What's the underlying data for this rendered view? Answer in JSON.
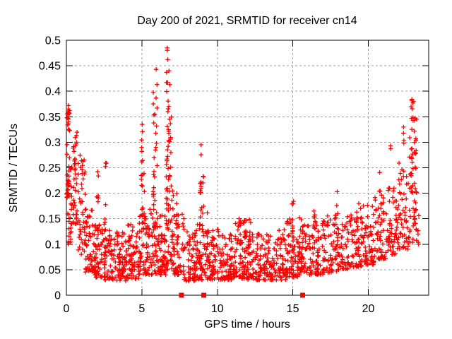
{
  "chart_data": {
    "type": "scatter",
    "title": "Day 200 of 2021, SRMTID for receiver cn14",
    "xlabel": "GPS time / hours",
    "ylabel": "SRMTID / TECUs",
    "xlim": [
      0,
      24
    ],
    "ylim": [
      0,
      0.5
    ],
    "xticks": [
      0,
      5,
      10,
      15,
      20
    ],
    "xtick_labels": [
      "0",
      "5",
      "10",
      "15",
      "20"
    ],
    "yticks": [
      0,
      0.05,
      0.1,
      0.15,
      0.2,
      0.25,
      0.3,
      0.35,
      0.4,
      0.45,
      0.5
    ],
    "ytick_labels": [
      "0",
      "0.05",
      "0.1",
      "0.15",
      "0.2",
      "0.25",
      "0.3",
      "0.35",
      "0.4",
      "0.45",
      "0.5"
    ],
    "grid": true,
    "legend": "none",
    "marker": "plus",
    "marker_color": "#ff0000",
    "grid_color": "#9e9e9e",
    "axis_color": "#000000",
    "background": "#ffffff",
    "seed": 20210200,
    "density_bands": [
      [
        0.02,
        0.18,
        0.19,
        0.375,
        30
      ],
      [
        0.05,
        0.35,
        0.1,
        0.3,
        25
      ],
      [
        0.35,
        0.75,
        0.14,
        0.335,
        34
      ],
      [
        0.75,
        1.25,
        0.08,
        0.28,
        36
      ],
      [
        1.25,
        1.85,
        0.045,
        0.17,
        52
      ],
      [
        1.85,
        2.5,
        0.035,
        0.145,
        58
      ],
      [
        2.5,
        3.2,
        0.03,
        0.13,
        62
      ],
      [
        3.2,
        4.0,
        0.028,
        0.125,
        68
      ],
      [
        4.0,
        4.8,
        0.032,
        0.14,
        68
      ],
      [
        4.8,
        5.5,
        0.04,
        0.17,
        62
      ],
      [
        5.5,
        6.2,
        0.04,
        0.18,
        58
      ],
      [
        6.2,
        6.6,
        0.04,
        0.16,
        44
      ],
      [
        6.6,
        7.1,
        0.05,
        0.22,
        52
      ],
      [
        7.1,
        7.8,
        0.04,
        0.16,
        54
      ],
      [
        7.8,
        8.6,
        0.028,
        0.125,
        58
      ],
      [
        8.6,
        9.4,
        0.03,
        0.14,
        58
      ],
      [
        9.4,
        10.2,
        0.03,
        0.13,
        62
      ],
      [
        10.2,
        11.0,
        0.03,
        0.12,
        68
      ],
      [
        11.0,
        11.9,
        0.032,
        0.15,
        68
      ],
      [
        11.9,
        12.8,
        0.03,
        0.125,
        68
      ],
      [
        12.8,
        13.7,
        0.03,
        0.12,
        68
      ],
      [
        13.7,
        14.6,
        0.03,
        0.13,
        66
      ],
      [
        14.6,
        15.4,
        0.035,
        0.15,
        64
      ],
      [
        15.4,
        16.2,
        0.04,
        0.14,
        62
      ],
      [
        16.2,
        17.0,
        0.04,
        0.145,
        60
      ],
      [
        17.0,
        17.9,
        0.045,
        0.16,
        60
      ],
      [
        17.9,
        18.8,
        0.05,
        0.16,
        58
      ],
      [
        18.8,
        19.6,
        0.055,
        0.17,
        56
      ],
      [
        19.6,
        20.4,
        0.06,
        0.18,
        56
      ],
      [
        20.4,
        21.2,
        0.07,
        0.2,
        54
      ],
      [
        21.2,
        22.0,
        0.08,
        0.22,
        50
      ],
      [
        22.0,
        22.7,
        0.09,
        0.26,
        46
      ],
      [
        22.7,
        23.35,
        0.1,
        0.31,
        44
      ]
    ],
    "spike_columns": [
      [
        0.15,
        0.28,
        0.372,
        10
      ],
      [
        0.55,
        0.22,
        0.33,
        8
      ],
      [
        1.0,
        0.18,
        0.275,
        8
      ],
      [
        2.05,
        0.1,
        0.26,
        8
      ],
      [
        2.6,
        0.12,
        0.26,
        8
      ],
      [
        5.0,
        0.14,
        0.335,
        14
      ],
      [
        5.15,
        0.12,
        0.24,
        7
      ],
      [
        5.8,
        0.17,
        0.4,
        15
      ],
      [
        5.95,
        0.2,
        0.445,
        9
      ],
      [
        6.68,
        0.2,
        0.485,
        16
      ],
      [
        6.78,
        0.14,
        0.44,
        14
      ],
      [
        6.9,
        0.22,
        0.42,
        9
      ],
      [
        7.3,
        0.1,
        0.2,
        6
      ],
      [
        8.9,
        0.13,
        0.295,
        12
      ],
      [
        9.05,
        0.1,
        0.24,
        7
      ],
      [
        9.35,
        0.09,
        0.17,
        6
      ],
      [
        11.5,
        0.09,
        0.165,
        8
      ],
      [
        11.85,
        0.09,
        0.155,
        6
      ],
      [
        12.15,
        0.085,
        0.15,
        5
      ],
      [
        15.0,
        0.09,
        0.19,
        8
      ],
      [
        15.5,
        0.085,
        0.155,
        6
      ],
      [
        16.45,
        0.09,
        0.17,
        7
      ],
      [
        17.9,
        0.09,
        0.21,
        7
      ],
      [
        19.3,
        0.08,
        0.18,
        6
      ],
      [
        20.8,
        0.11,
        0.25,
        8
      ],
      [
        21.45,
        0.12,
        0.3,
        8
      ],
      [
        22.3,
        0.13,
        0.33,
        8
      ],
      [
        22.9,
        0.18,
        0.385,
        16
      ],
      [
        23.1,
        0.14,
        0.35,
        10
      ]
    ],
    "outlier_points": [
      [
        6.68,
        0.485
      ],
      [
        6.72,
        0.462
      ],
      [
        5.95,
        0.443
      ],
      [
        6.8,
        0.44
      ],
      [
        0.13,
        0.372
      ],
      [
        0.2,
        0.362
      ],
      [
        22.88,
        0.382
      ],
      [
        22.95,
        0.377
      ],
      [
        23.0,
        0.38
      ],
      [
        23.2,
        0.345
      ],
      [
        23.15,
        0.307
      ],
      [
        5.02,
        0.335
      ],
      [
        8.92,
        0.295
      ]
    ],
    "flagged_times": {
      "marker": "filled-square",
      "color": "#ff0000",
      "y": 0,
      "x": [
        7.62,
        9.1,
        15.65
      ]
    }
  }
}
